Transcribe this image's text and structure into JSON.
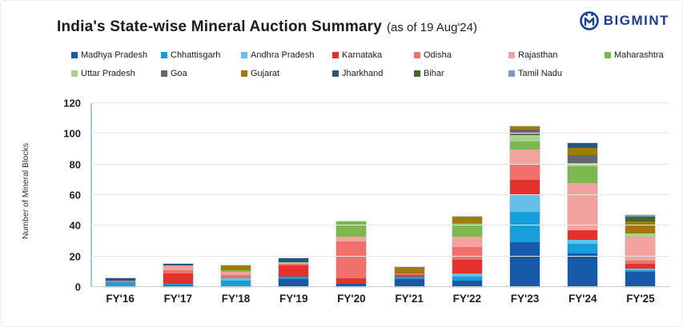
{
  "header": {
    "title": "India's State-wise Mineral Auction Summary",
    "subtitle": "(as of 19 Aug'24)"
  },
  "logo": {
    "text": "BIGMINT",
    "color": "#1b3e91"
  },
  "chart_data": {
    "type": "bar",
    "stacked": true,
    "title": "India's State-wise Mineral Auction Summary (as of 19 Aug'24)",
    "xlabel": "",
    "ylabel": "Number of Mineral Blocks",
    "ylim": [
      0,
      120
    ],
    "yticks": [
      0,
      20,
      40,
      60,
      80,
      100,
      120
    ],
    "grid": true,
    "legend_position": "top",
    "categories": [
      "FY'16",
      "FY'17",
      "FY'18",
      "FY'19",
      "FY'20",
      "FY'21",
      "FY'22",
      "FY'23",
      "FY'24",
      "FY'25"
    ],
    "series": [
      {
        "name": "Madhya Pradesh",
        "color": "#1659a9",
        "values": [
          0,
          1,
          0,
          5,
          2,
          5,
          4,
          29,
          22,
          10
        ]
      },
      {
        "name": "Chhattisgarh",
        "color": "#169fdb",
        "values": [
          3,
          1,
          4,
          2,
          0,
          2,
          3,
          20,
          6,
          1
        ]
      },
      {
        "name": "Andhra Pradesh",
        "color": "#63c1e8",
        "values": [
          0,
          0,
          2,
          0,
          0,
          0,
          2,
          11,
          3,
          1
        ]
      },
      {
        "name": "Karnataka",
        "color": "#e3312b",
        "values": [
          0,
          7,
          0,
          7,
          4,
          1,
          9,
          10,
          6,
          3
        ]
      },
      {
        "name": "Odisha",
        "color": "#f0716c",
        "values": [
          1,
          2,
          2,
          1,
          24,
          1,
          8,
          10,
          0,
          2
        ]
      },
      {
        "name": "Rajasthan",
        "color": "#f2a3a0",
        "values": [
          0,
          3,
          2,
          0,
          3,
          0,
          7,
          10,
          31,
          16
        ]
      },
      {
        "name": "Maharashtra",
        "color": "#7cb84e",
        "values": [
          0,
          0,
          1,
          0,
          10,
          0,
          9,
          5,
          11,
          0
        ]
      },
      {
        "name": "Uttar Pradesh",
        "color": "#a9d18e",
        "values": [
          0,
          0,
          0,
          1,
          0,
          0,
          0,
          4,
          2,
          2
        ]
      },
      {
        "name": "Goa",
        "color": "#676767",
        "values": [
          0,
          0,
          0,
          0,
          0,
          0,
          0,
          4,
          5,
          0
        ]
      },
      {
        "name": "Gujarat",
        "color": "#9e7c0c",
        "values": [
          0,
          0,
          3,
          0,
          0,
          4,
          4,
          2,
          5,
          8
        ]
      },
      {
        "name": "Jharkhand",
        "color": "#26567e",
        "values": [
          2,
          1,
          0,
          3,
          0,
          0,
          0,
          0,
          3,
          0
        ]
      },
      {
        "name": "Bihar",
        "color": "#40682c",
        "values": [
          0,
          0,
          0,
          0,
          0,
          0,
          0,
          0,
          0,
          3
        ]
      },
      {
        "name": "Tamil Nadu",
        "color": "#8099c8",
        "values": [
          0,
          0,
          0,
          0,
          0,
          0,
          0,
          0,
          0,
          1
        ]
      }
    ],
    "totals": [
      6,
      15,
      14,
      19,
      43,
      13,
      46,
      105,
      94,
      47
    ]
  }
}
